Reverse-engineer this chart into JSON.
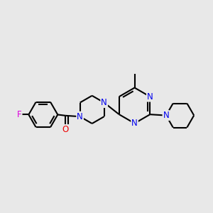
{
  "background_color": "#e8e8e8",
  "bond_color": "#000000",
  "N_color": "#0000ee",
  "O_color": "#ee0000",
  "F_color": "#dd00dd",
  "line_width": 1.5,
  "dbo": 0.012,
  "figsize": [
    3.0,
    3.0
  ],
  "dpi": 100,
  "xlim": [
    -0.05,
    1.05
  ],
  "ylim": [
    -0.05,
    1.05
  ],
  "font_size": 8.5
}
